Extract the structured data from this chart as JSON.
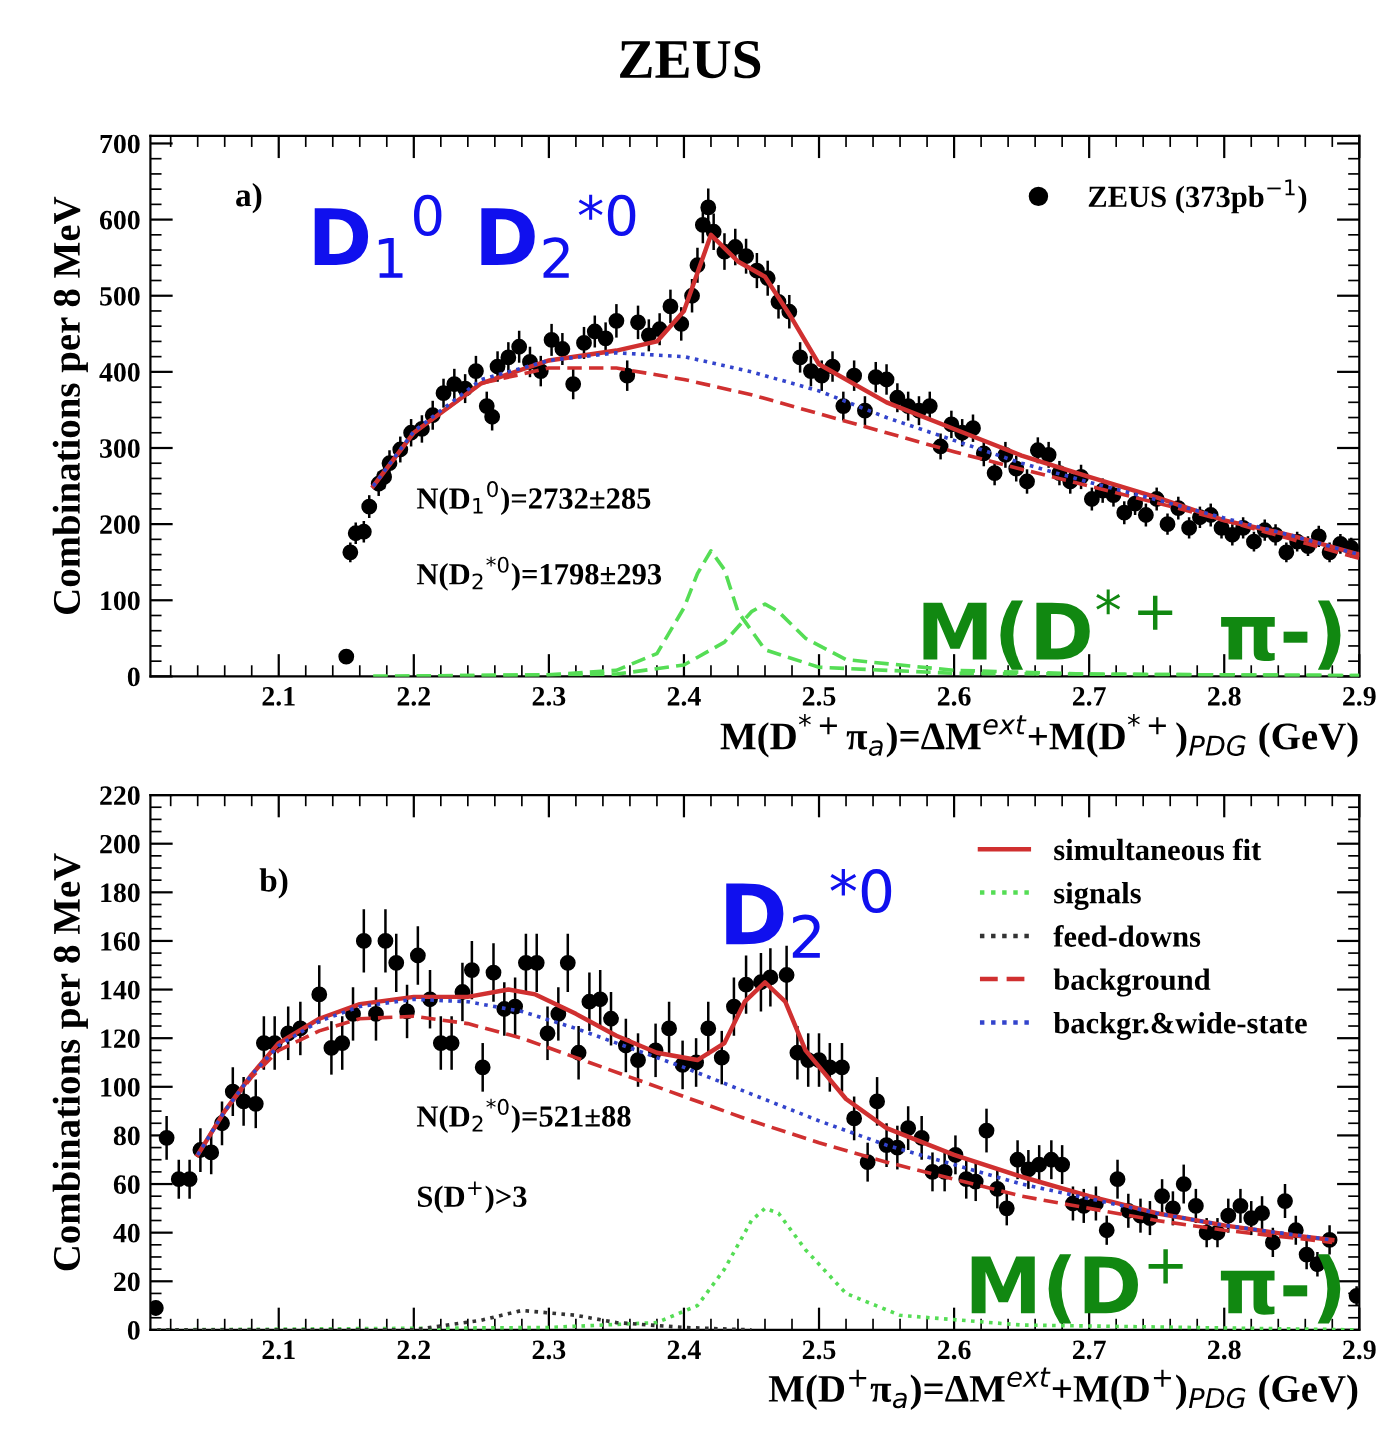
{
  "chart_data": [
    {
      "type": "scatter",
      "title": "ZEUS",
      "xlabel": "M(D$^{*+}$π$_{a}$)=ΔM$^{ext}$+M(D$^{*+}$)$_{PDG}$ (GeV)",
      "ylabel": "Combinations per 8 MeV",
      "xlim": [
        2.005,
        2.9
      ],
      "xticks": [
        2.1,
        2.2,
        2.3,
        2.4,
        2.5,
        2.6,
        2.7,
        2.8,
        2.9
      ],
      "ylim": [
        0,
        710
      ],
      "yticks": [
        0,
        100,
        200,
        300,
        400,
        500,
        600,
        700
      ],
      "legend": "top right",
      "annotations": [
        "a)",
        "D$_{1}$$^{0}$ D$_{2}$$^{*0}$",
        "N(D$_{1}$$^{0}$)=2732±285",
        "N(D$_{2}$$^{*0}$)=1798±293",
        "M(D$^{*+}$ π-)"
      ],
      "series": [
        {
          "name": "ZEUS (373pb$^{−1}$)",
          "color": "#000000",
          "marker": "circle",
          "x": [
            2.15,
            2.153,
            2.157,
            2.163,
            2.167,
            2.174,
            2.178,
            2.182,
            2.19,
            2.198,
            2.206,
            2.214,
            2.222,
            2.23,
            2.238,
            2.246,
            2.254,
            2.258,
            2.262,
            2.27,
            2.278,
            2.286,
            2.294,
            2.302,
            2.31,
            2.318,
            2.326,
            2.334,
            2.342,
            2.35,
            2.358,
            2.366,
            2.374,
            2.382,
            2.39,
            2.398,
            2.406,
            2.41,
            2.414,
            2.418,
            2.422,
            2.43,
            2.438,
            2.446,
            2.454,
            2.462,
            2.47,
            2.478,
            2.486,
            2.494,
            2.502,
            2.51,
            2.518,
            2.526,
            2.534,
            2.542,
            2.55,
            2.558,
            2.566,
            2.574,
            2.582,
            2.59,
            2.598,
            2.606,
            2.614,
            2.622,
            2.63,
            2.638,
            2.646,
            2.654,
            2.662,
            2.67,
            2.678,
            2.686,
            2.694,
            2.702,
            2.71,
            2.718,
            2.726,
            2.734,
            2.742,
            2.75,
            2.758,
            2.766,
            2.774,
            2.782,
            2.79,
            2.798,
            2.806,
            2.814,
            2.822,
            2.83,
            2.838,
            2.846,
            2.854,
            2.862,
            2.87,
            2.878,
            2.886,
            2.894
          ],
          "values": [
            26,
            163,
            188,
            190,
            223,
            253,
            262,
            280,
            298,
            320,
            325,
            343,
            372,
            384,
            378,
            401,
            355,
            341,
            407,
            419,
            433,
            413,
            401,
            442,
            430,
            384,
            438,
            453,
            444,
            467,
            395,
            465,
            448,
            456,
            486,
            463,
            500,
            540,
            593,
            616,
            584,
            558,
            564,
            552,
            533,
            523,
            492,
            479,
            419,
            401,
            395,
            407,
            355,
            395,
            349,
            393,
            390,
            366,
            355,
            349,
            355,
            302,
            331,
            320,
            326,
            293,
            267,
            291,
            273,
            256,
            297,
            291,
            267,
            256,
            262,
            233,
            244,
            238,
            215,
            227,
            212,
            233,
            200,
            221,
            195,
            209,
            212,
            195,
            186,
            195,
            177,
            192,
            186,
            163,
            177,
            171,
            184,
            163,
            174,
            169
          ],
          "errors": [
            6,
            13,
            14,
            14,
            15,
            16,
            16,
            17,
            17,
            18,
            18,
            19,
            19,
            20,
            19,
            20,
            19,
            18,
            20,
            20,
            21,
            20,
            20,
            21,
            21,
            20,
            21,
            21,
            21,
            22,
            20,
            22,
            21,
            21,
            22,
            22,
            22,
            23,
            24,
            25,
            24,
            24,
            24,
            23,
            23,
            23,
            22,
            22,
            20,
            20,
            20,
            20,
            19,
            20,
            19,
            20,
            20,
            19,
            19,
            19,
            19,
            17,
            18,
            18,
            18,
            17,
            16,
            17,
            17,
            16,
            17,
            17,
            16,
            16,
            16,
            15,
            16,
            15,
            15,
            15,
            15,
            15,
            14,
            15,
            14,
            14,
            15,
            14,
            14,
            14,
            13,
            14,
            14,
            13,
            13,
            13,
            14,
            13,
            13,
            13
          ]
        },
        {
          "type": "line",
          "color": "#d03030",
          "line_style": "solid",
          "x": [
            2.17,
            2.2,
            2.25,
            2.3,
            2.35,
            2.38,
            2.4,
            2.42,
            2.44,
            2.46,
            2.48,
            2.5,
            2.55,
            2.6,
            2.65,
            2.7,
            2.75,
            2.8,
            2.85,
            2.9
          ],
          "values": [
            250,
            320,
            385,
            415,
            428,
            440,
            480,
            580,
            545,
            525,
            470,
            410,
            360,
            325,
            290,
            262,
            235,
            205,
            185,
            160
          ]
        },
        {
          "type": "line",
          "color": "#55dd55",
          "line_style": "dashed",
          "x": [
            2.17,
            2.3,
            2.35,
            2.38,
            2.4,
            2.41,
            2.42,
            2.43,
            2.44,
            2.46,
            2.5,
            2.6,
            2.9
          ],
          "values": [
            0,
            2,
            8,
            30,
            90,
            135,
            165,
            140,
            85,
            35,
            12,
            4,
            1
          ]
        },
        {
          "type": "line",
          "color": "#55dd55",
          "line_style": "dashed",
          "x": [
            2.17,
            2.35,
            2.4,
            2.43,
            2.45,
            2.46,
            2.47,
            2.49,
            2.52,
            2.6,
            2.7,
            2.9
          ],
          "values": [
            0,
            3,
            15,
            45,
            85,
            95,
            85,
            50,
            22,
            8,
            3,
            1
          ]
        },
        {
          "type": "line",
          "color": "#d03030",
          "line_style": "dashed",
          "x": [
            2.17,
            2.2,
            2.25,
            2.3,
            2.35,
            2.4,
            2.45,
            2.5,
            2.55,
            2.6,
            2.65,
            2.7,
            2.75,
            2.8,
            2.85,
            2.9
          ],
          "values": [
            250,
            320,
            385,
            405,
            405,
            390,
            370,
            345,
            320,
            295,
            272,
            250,
            228,
            205,
            180,
            155
          ]
        },
        {
          "type": "line",
          "color": "#3344cc",
          "line_style": "dotted",
          "x": [
            2.17,
            2.2,
            2.25,
            2.3,
            2.35,
            2.4,
            2.45,
            2.5,
            2.55,
            2.6,
            2.65,
            2.7,
            2.75,
            2.8,
            2.85,
            2.9
          ],
          "values": [
            250,
            322,
            390,
            415,
            425,
            420,
            400,
            375,
            340,
            310,
            280,
            255,
            232,
            208,
            185,
            160
          ]
        }
      ]
    },
    {
      "type": "scatter",
      "xlabel": "M(D$^{+}$π$_{a}$)=ΔM$^{ext}$+M(D$^{+}$)$_{PDG}$ (GeV)",
      "ylabel": "Combinations per 8 MeV",
      "xlim": [
        2.005,
        2.9
      ],
      "xticks": [
        2.1,
        2.2,
        2.3,
        2.4,
        2.5,
        2.6,
        2.7,
        2.8,
        2.9
      ],
      "ylim": [
        0,
        220
      ],
      "yticks": [
        0,
        20,
        40,
        60,
        80,
        100,
        120,
        140,
        160,
        180,
        200,
        220
      ],
      "legend": "top right",
      "annotations": [
        "b)",
        "D$_{2}$$^{*0}$",
        "N(D$_{2}$$^{*0}$)=521±88",
        "S(D$^{+}$)>3",
        "M(D$^{+}$ π-)"
      ],
      "series": [
        {
          "color": "#000000",
          "marker": "circle",
          "x": [
            2.009,
            2.017,
            2.026,
            2.034,
            2.042,
            2.05,
            2.058,
            2.066,
            2.074,
            2.083,
            2.089,
            2.097,
            2.107,
            2.116,
            2.13,
            2.139,
            2.147,
            2.155,
            2.163,
            2.172,
            2.179,
            2.187,
            2.195,
            2.203,
            2.212,
            2.22,
            2.228,
            2.236,
            2.243,
            2.251,
            2.259,
            2.267,
            2.275,
            2.283,
            2.291,
            2.299,
            2.307,
            2.314,
            2.322,
            2.33,
            2.338,
            2.346,
            2.357,
            2.366,
            2.379,
            2.389,
            2.399,
            2.409,
            2.418,
            2.428,
            2.437,
            2.446,
            2.457,
            2.464,
            2.476,
            2.484,
            2.492,
            2.5,
            2.508,
            2.517,
            2.526,
            2.536,
            2.543,
            2.55,
            2.558,
            2.566,
            2.576,
            2.584,
            2.593,
            2.601,
            2.609,
            2.616,
            2.624,
            2.632,
            2.639,
            2.647,
            2.655,
            2.663,
            2.672,
            2.68,
            2.688,
            2.696,
            2.705,
            2.713,
            2.721,
            2.729,
            2.738,
            2.745,
            2.754,
            2.762,
            2.77,
            2.779,
            2.787,
            2.795,
            2.803,
            2.812,
            2.82,
            2.828,
            2.836,
            2.845,
            2.853,
            2.861,
            2.869,
            2.878,
            2.898
          ],
          "values": [
            9,
            79,
            62,
            62,
            74,
            73,
            85,
            98,
            94,
            93,
            118,
            118,
            122,
            124,
            138,
            116,
            118,
            130,
            160,
            130,
            160,
            151,
            131,
            154,
            136,
            118,
            118,
            139,
            148,
            108,
            147,
            132,
            133,
            151,
            151,
            122,
            130,
            151,
            114,
            135,
            136,
            128,
            117,
            111,
            115,
            124,
            109,
            110,
            124,
            112,
            133,
            142,
            143,
            145,
            146,
            114,
            111,
            111,
            108,
            108,
            87,
            69,
            94,
            76,
            75,
            83,
            79,
            65,
            65,
            72,
            62,
            61,
            82,
            58,
            50,
            70,
            66,
            68,
            70,
            68,
            52,
            51,
            52,
            41,
            62,
            49,
            47,
            46,
            55,
            50,
            60,
            51,
            40,
            40,
            47,
            51,
            46,
            48,
            36,
            53,
            41,
            31,
            27,
            37,
            14
          ],
          "errors": [
            3,
            9,
            8,
            8,
            9,
            9,
            9,
            10,
            10,
            10,
            11,
            11,
            11,
            11,
            12,
            11,
            11,
            11,
            13,
            11,
            13,
            12,
            11,
            12,
            12,
            11,
            11,
            12,
            12,
            10,
            12,
            11,
            12,
            12,
            12,
            11,
            11,
            12,
            11,
            12,
            12,
            11,
            11,
            11,
            11,
            11,
            10,
            10,
            11,
            11,
            12,
            12,
            12,
            12,
            12,
            11,
            11,
            11,
            10,
            10,
            9,
            8,
            10,
            9,
            9,
            9,
            9,
            8,
            8,
            8,
            8,
            8,
            9,
            8,
            7,
            8,
            8,
            8,
            8,
            8,
            7,
            7,
            7,
            6,
            8,
            7,
            7,
            7,
            7,
            7,
            8,
            7,
            6,
            6,
            7,
            7,
            7,
            7,
            6,
            7,
            6,
            6,
            5,
            6,
            4
          ]
        },
        {
          "type": "line",
          "name": "simultaneous fit",
          "color": "#d03030",
          "line_style": "solid",
          "x": [
            2.04,
            2.06,
            2.08,
            2.1,
            2.13,
            2.16,
            2.2,
            2.24,
            2.27,
            2.29,
            2.32,
            2.35,
            2.38,
            2.41,
            2.43,
            2.445,
            2.46,
            2.475,
            2.49,
            2.52,
            2.55,
            2.6,
            2.65,
            2.7,
            2.75,
            2.8,
            2.85,
            2.88
          ],
          "values": [
            72,
            90,
            105,
            118,
            128,
            134,
            137,
            137,
            140,
            138,
            130,
            121,
            114,
            111,
            118,
            135,
            143,
            135,
            115,
            95,
            83,
            72,
            63,
            55,
            48,
            43,
            39,
            37
          ]
        },
        {
          "type": "line",
          "name": "signals",
          "color": "#55dd55",
          "line_style": "dotted",
          "x": [
            2.01,
            2.3,
            2.38,
            2.41,
            2.43,
            2.45,
            2.46,
            2.47,
            2.49,
            2.52,
            2.56,
            2.65,
            2.9
          ],
          "values": [
            0,
            1,
            3,
            10,
            25,
            45,
            50,
            48,
            33,
            15,
            6,
            2,
            0
          ]
        },
        {
          "type": "line",
          "name": "feed-downs",
          "color": "#333333",
          "line_style": "dotted",
          "x": [
            2.01,
            2.2,
            2.25,
            2.28,
            2.3,
            2.32,
            2.35,
            2.4,
            2.45
          ],
          "values": [
            0,
            0,
            4,
            8,
            7,
            6,
            3,
            1,
            0
          ]
        },
        {
          "type": "line",
          "name": "background",
          "color": "#d03030",
          "line_style": "dashed",
          "x": [
            2.04,
            2.06,
            2.08,
            2.1,
            2.13,
            2.16,
            2.2,
            2.24,
            2.28,
            2.32,
            2.36,
            2.4,
            2.45,
            2.5,
            2.55,
            2.6,
            2.65,
            2.7,
            2.75,
            2.8,
            2.88
          ],
          "values": [
            72,
            90,
            104,
            115,
            123,
            128,
            129,
            126,
            120,
            112,
            104,
            96,
            86,
            77,
            69,
            62,
            55,
            50,
            45,
            41,
            36
          ]
        },
        {
          "type": "line",
          "name": "backgr.&wide-state",
          "color": "#3344cc",
          "line_style": "dotted",
          "x": [
            2.04,
            2.06,
            2.08,
            2.1,
            2.13,
            2.16,
            2.2,
            2.24,
            2.28,
            2.32,
            2.36,
            2.4,
            2.45,
            2.5,
            2.55,
            2.6,
            2.65,
            2.7,
            2.75,
            2.8,
            2.88
          ],
          "values": [
            72,
            90,
            105,
            117,
            127,
            133,
            136,
            135,
            131,
            124,
            116,
            108,
            97,
            86,
            76,
            68,
            60,
            54,
            48,
            43,
            37
          ]
        }
      ]
    }
  ]
}
